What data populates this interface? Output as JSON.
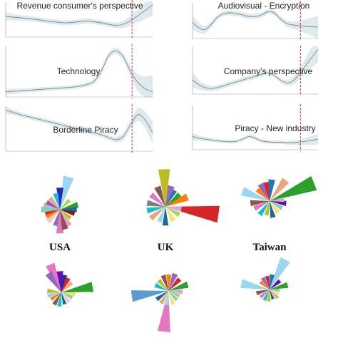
{
  "colors": {
    "band": "#d6e1e6",
    "curve": "#6f8c98",
    "marker": "#e0245e"
  },
  "chart_data": [
    {
      "type": "line",
      "title": "Revenue consumer's perspective",
      "x": [
        0,
        0.05,
        0.1,
        0.15,
        0.2,
        0.25,
        0.3,
        0.35,
        0.4,
        0.45,
        0.5,
        0.55,
        0.6,
        0.65,
        0.7,
        0.75,
        0.8,
        0.85,
        0.9,
        0.95,
        1.0
      ],
      "values": [
        0.58,
        0.56,
        0.54,
        0.52,
        0.5,
        0.47,
        0.44,
        0.42,
        0.4,
        0.41,
        0.43,
        0.45,
        0.43,
        0.4,
        0.36,
        0.33,
        0.36,
        0.46,
        0.6,
        0.75,
        0.9
      ],
      "band_halfwidth": [
        0.12,
        0.09,
        0.08,
        0.07,
        0.07,
        0.07,
        0.07,
        0.07,
        0.07,
        0.07,
        0.07,
        0.07,
        0.07,
        0.07,
        0.07,
        0.08,
        0.1,
        0.14,
        0.18,
        0.24,
        0.3
      ],
      "marker_x": 0.86,
      "ylim": [
        0,
        1
      ]
    },
    {
      "type": "line",
      "title": "Audiovisual - Encryption",
      "x": [
        0,
        0.05,
        0.1,
        0.15,
        0.2,
        0.25,
        0.3,
        0.35,
        0.4,
        0.45,
        0.5,
        0.55,
        0.6,
        0.65,
        0.7,
        0.75,
        0.8,
        0.85,
        0.9,
        0.95,
        1.0
      ],
      "values": [
        0.45,
        0.3,
        0.25,
        0.4,
        0.6,
        0.7,
        0.72,
        0.7,
        0.66,
        0.62,
        0.62,
        0.66,
        0.75,
        0.72,
        0.55,
        0.42,
        0.38,
        0.36,
        0.34,
        0.33,
        0.32
      ],
      "band_halfwidth": [
        0.2,
        0.14,
        0.1,
        0.08,
        0.07,
        0.07,
        0.07,
        0.07,
        0.07,
        0.07,
        0.07,
        0.07,
        0.07,
        0.07,
        0.07,
        0.08,
        0.1,
        0.14,
        0.2,
        0.26,
        0.32
      ],
      "marker_x": 0.86,
      "ylim": [
        0,
        1
      ]
    },
    {
      "type": "line",
      "title": "Technology",
      "x": [
        0,
        0.05,
        0.1,
        0.15,
        0.2,
        0.25,
        0.3,
        0.35,
        0.4,
        0.45,
        0.5,
        0.55,
        0.6,
        0.65,
        0.7,
        0.75,
        0.8,
        0.85,
        0.9,
        0.95,
        1.0
      ],
      "values": [
        0.1,
        0.11,
        0.12,
        0.13,
        0.14,
        0.15,
        0.16,
        0.17,
        0.18,
        0.19,
        0.21,
        0.24,
        0.3,
        0.5,
        0.8,
        0.9,
        0.78,
        0.5,
        0.28,
        0.16,
        0.1
      ],
      "band_halfwidth": [
        0.06,
        0.05,
        0.04,
        0.04,
        0.04,
        0.04,
        0.04,
        0.04,
        0.04,
        0.04,
        0.04,
        0.04,
        0.05,
        0.06,
        0.06,
        0.06,
        0.07,
        0.1,
        0.16,
        0.24,
        0.32
      ],
      "marker_x": 0.86,
      "ylim": [
        0,
        1
      ]
    },
    {
      "type": "line",
      "title": "Company's perspective",
      "x": [
        0,
        0.05,
        0.1,
        0.15,
        0.2,
        0.25,
        0.3,
        0.35,
        0.4,
        0.45,
        0.5,
        0.55,
        0.6,
        0.65,
        0.7,
        0.75,
        0.8,
        0.85,
        0.9,
        0.95,
        1.0
      ],
      "values": [
        0.3,
        0.2,
        0.14,
        0.12,
        0.14,
        0.18,
        0.22,
        0.26,
        0.3,
        0.34,
        0.38,
        0.42,
        0.45,
        0.4,
        0.3,
        0.24,
        0.28,
        0.42,
        0.6,
        0.78,
        0.95
      ],
      "band_halfwidth": [
        0.16,
        0.1,
        0.07,
        0.06,
        0.05,
        0.05,
        0.05,
        0.05,
        0.05,
        0.05,
        0.05,
        0.05,
        0.05,
        0.05,
        0.05,
        0.06,
        0.08,
        0.12,
        0.16,
        0.22,
        0.28
      ],
      "marker_x": 0.86,
      "ylim": [
        0,
        1
      ]
    },
    {
      "type": "line",
      "title": "Borderline Piracy",
      "x": [
        0,
        0.05,
        0.1,
        0.15,
        0.2,
        0.25,
        0.3,
        0.35,
        0.4,
        0.45,
        0.5,
        0.55,
        0.6,
        0.65,
        0.7,
        0.75,
        0.8,
        0.85,
        0.9,
        0.95,
        1.0
      ],
      "values": [
        0.9,
        0.85,
        0.8,
        0.76,
        0.72,
        0.68,
        0.64,
        0.6,
        0.56,
        0.52,
        0.48,
        0.44,
        0.4,
        0.36,
        0.3,
        0.25,
        0.32,
        0.58,
        0.8,
        0.68,
        0.4
      ],
      "band_halfwidth": [
        0.08,
        0.06,
        0.05,
        0.05,
        0.05,
        0.05,
        0.05,
        0.05,
        0.05,
        0.05,
        0.05,
        0.05,
        0.05,
        0.05,
        0.05,
        0.06,
        0.08,
        0.1,
        0.14,
        0.18,
        0.24
      ],
      "marker_x": 0.86,
      "ylim": [
        0,
        1
      ]
    },
    {
      "type": "line",
      "title": "Piracy - New industry",
      "x": [
        0,
        0.05,
        0.1,
        0.15,
        0.2,
        0.25,
        0.3,
        0.35,
        0.4,
        0.45,
        0.5,
        0.55,
        0.6,
        0.65,
        0.7,
        0.75,
        0.8,
        0.85,
        0.9,
        0.95,
        1.0
      ],
      "values": [
        0.3,
        0.26,
        0.24,
        0.22,
        0.2,
        0.19,
        0.18,
        0.19,
        0.24,
        0.3,
        0.26,
        0.2,
        0.18,
        0.17,
        0.17,
        0.16,
        0.16,
        0.17,
        0.19,
        0.21,
        0.24
      ],
      "band_halfwidth": [
        0.08,
        0.06,
        0.05,
        0.04,
        0.04,
        0.04,
        0.04,
        0.04,
        0.04,
        0.04,
        0.04,
        0.04,
        0.04,
        0.04,
        0.04,
        0.04,
        0.05,
        0.06,
        0.08,
        0.1,
        0.12
      ],
      "marker_x": 0.86,
      "ylim": [
        0,
        1
      ]
    },
    {
      "type": "rose",
      "title": "USA",
      "colors": [
        "#9ad6f0",
        "#1f2bb0",
        "#33b0e6",
        "#e8a87c",
        "#2ba02b",
        "#1a6b9a",
        "#8b1a1a",
        "#e7a0c8",
        "#bcbcbc",
        "#d62728",
        "#5a9bd4",
        "#ff7f0e",
        "#f0c8c8",
        "#9467bd",
        "#e377c2",
        "#bcbd22",
        "#8c564b",
        "#7fcfc0",
        "#9b59b6",
        "#a6d854"
      ],
      "angles": [
        75,
        90,
        105,
        130,
        15,
        0,
        -15,
        -60,
        165,
        195,
        -105,
        210,
        225,
        255,
        -90,
        -40,
        -75,
        180,
        150,
        45
      ],
      "values": [
        1.0,
        0.65,
        0.5,
        0.45,
        0.55,
        0.5,
        0.45,
        0.55,
        0.5,
        0.45,
        0.5,
        0.45,
        0.5,
        0.45,
        0.7,
        0.4,
        0.6,
        0.55,
        0.45,
        0.4
      ]
    },
    {
      "type": "rose",
      "title": "UK",
      "colors": [
        "#bcbd22",
        "#d62728",
        "#1f77b4",
        "#9467bd",
        "#2ca02c",
        "#ff7f0e",
        "#8c564b",
        "#e377c2",
        "#7f7f7f",
        "#17becf",
        "#e8a87c",
        "#9ad6f0",
        "#1a6b9a",
        "#f7e36b",
        "#a6d854",
        "#d4a5e6"
      ],
      "angles": [
        92,
        -8,
        62,
        74,
        40,
        24,
        112,
        140,
        168,
        192,
        218,
        248,
        270,
        300,
        330,
        352
      ],
      "values": [
        0.7,
        1.0,
        0.35,
        0.4,
        0.35,
        0.45,
        0.4,
        0.35,
        0.35,
        0.35,
        0.35,
        0.3,
        0.35,
        0.3,
        0.3,
        0.3
      ]
    },
    {
      "type": "rose",
      "title": "Taiwan",
      "colors": [
        "#2ca02c",
        "#e8a87c",
        "#9ad6f0",
        "#d62728",
        "#1f77b4",
        "#9467bd",
        "#ff7f0e",
        "#8c564b",
        "#e377c2",
        "#17becf",
        "#bcbd22",
        "#1a6b9a",
        "#f7e36b",
        "#7fcfc0",
        "#6a0dad",
        "#bcbcbc"
      ],
      "angles": [
        22,
        52,
        160,
        100,
        84,
        118,
        136,
        186,
        206,
        234,
        258,
        282,
        306,
        330,
        352,
        6
      ],
      "values": [
        1.0,
        0.55,
        0.6,
        0.4,
        0.45,
        0.4,
        0.35,
        0.4,
        0.35,
        0.35,
        0.3,
        0.35,
        0.3,
        0.3,
        0.35,
        0.3
      ]
    },
    {
      "type": "rose",
      "colors": [
        "#2ba02b",
        "#e377c2",
        "#9467bd",
        "#6a0dad",
        "#1f2bb0",
        "#d62728",
        "#e8a87c",
        "#9ad6f0",
        "#bcbd22",
        "#ff7f0e",
        "#8c564b",
        "#17becf",
        "#1a6b9a",
        "#f0c8c8",
        "#7fcfc0",
        "#f7e36b"
      ],
      "angles": [
        10,
        112,
        124,
        94,
        80,
        64,
        44,
        194,
        174,
        214,
        240,
        262,
        286,
        310,
        334,
        352
      ],
      "values": [
        0.9,
        0.85,
        0.65,
        0.6,
        0.5,
        0.45,
        0.4,
        0.4,
        0.4,
        0.35,
        0.4,
        0.4,
        0.35,
        0.35,
        0.35,
        0.4
      ]
    },
    {
      "type": "rose",
      "colors": [
        "#e377c2",
        "#5a9bd4",
        "#2ca02c",
        "#d62728",
        "#9467bd",
        "#ff7f0e",
        "#8c564b",
        "#bcbd22",
        "#17becf",
        "#1a6b9a",
        "#e8a87c",
        "#9ad6f0",
        "#f7e36b",
        "#7fcfc0",
        "#a6d854",
        "#d4a5e6"
      ],
      "angles": [
        -96,
        188,
        18,
        46,
        68,
        88,
        108,
        132,
        156,
        216,
        240,
        262,
        290,
        314,
        336,
        356
      ],
      "values": [
        1.0,
        0.9,
        0.5,
        0.4,
        0.45,
        0.4,
        0.4,
        0.35,
        0.35,
        0.35,
        0.35,
        0.35,
        0.35,
        0.3,
        0.3,
        0.35
      ]
    },
    {
      "type": "rose",
      "colors": [
        "#9ad6f0",
        "#9ad6f0",
        "#2ca02c",
        "#1f77b4",
        "#d62728",
        "#9467bd",
        "#ff7f0e",
        "#8c564b",
        "#e377c2",
        "#17becf",
        "#bcbd22",
        "#1a6b9a",
        "#e8a87c",
        "#f7e36b",
        "#7fcfc0",
        "#6a0dad"
      ],
      "angles": [
        62,
        168,
        14,
        80,
        100,
        120,
        140,
        196,
        220,
        244,
        266,
        290,
        314,
        336,
        356,
        40
      ],
      "values": [
        1.0,
        0.85,
        0.55,
        0.45,
        0.4,
        0.4,
        0.35,
        0.4,
        0.35,
        0.35,
        0.35,
        0.3,
        0.35,
        0.3,
        0.3,
        0.4
      ]
    }
  ]
}
